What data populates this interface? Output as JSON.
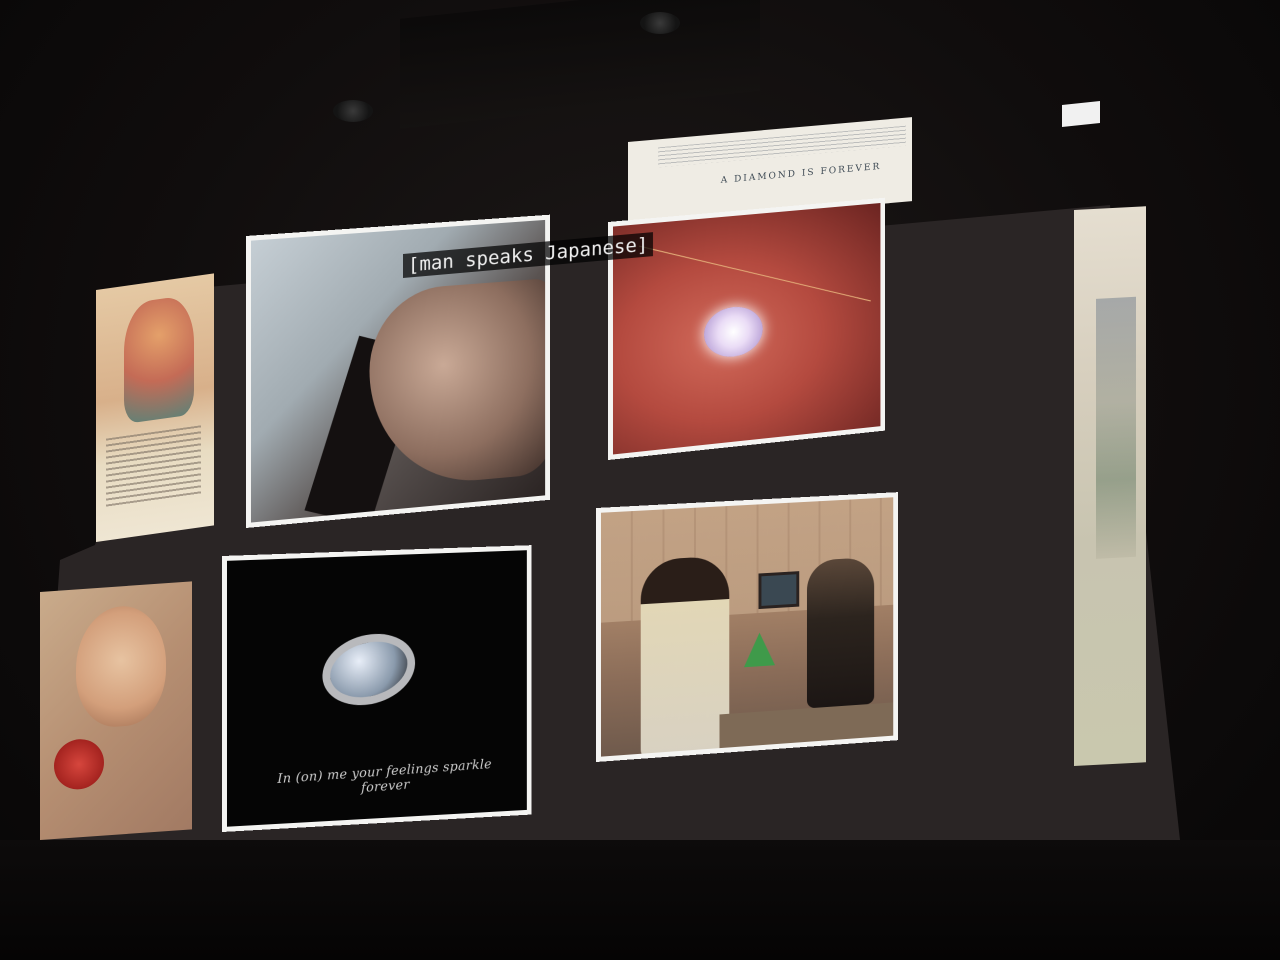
{
  "scene": {
    "subtitle": "[man speaks Japanese]",
    "ring_caption": "In (on) me your feelings sparkle forever",
    "ad_strip_text": "A DIAMOND IS FOREVER"
  },
  "colors": {
    "frame_border": "#f4f4f2",
    "screen_background": "#2a2525"
  }
}
